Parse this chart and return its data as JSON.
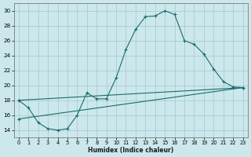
{
  "xlabel": "Humidex (Indice chaleur)",
  "bg_color": "#cce8ec",
  "grid_color": "#a8cdd4",
  "line_color": "#1a6b6b",
  "xlim": [
    -0.5,
    23.5
  ],
  "ylim": [
    13,
    31
  ],
  "xticks": [
    0,
    1,
    2,
    3,
    4,
    5,
    6,
    7,
    8,
    9,
    10,
    11,
    12,
    13,
    14,
    15,
    16,
    17,
    18,
    19,
    20,
    21,
    22,
    23
  ],
  "yticks": [
    14,
    16,
    18,
    20,
    22,
    24,
    26,
    28,
    30
  ],
  "curve1_x": [
    0,
    1,
    2,
    3,
    4,
    5,
    6,
    7,
    8,
    9,
    10,
    11,
    12,
    13,
    14,
    15,
    16,
    17,
    18,
    19,
    20,
    21,
    22,
    23
  ],
  "curve1_y": [
    18.0,
    17.0,
    15.0,
    14.2,
    14.0,
    14.2,
    16.0,
    19.0,
    18.2,
    18.2,
    21.0,
    24.8,
    27.5,
    29.2,
    29.3,
    30.0,
    29.5,
    26.0,
    25.5,
    24.2,
    22.2,
    20.5,
    19.8,
    19.7
  ],
  "curve2_x": [
    0,
    23
  ],
  "curve2_y": [
    18.0,
    19.7
  ],
  "curve3_x": [
    0,
    23
  ],
  "curve3_y": [
    15.5,
    19.7
  ]
}
